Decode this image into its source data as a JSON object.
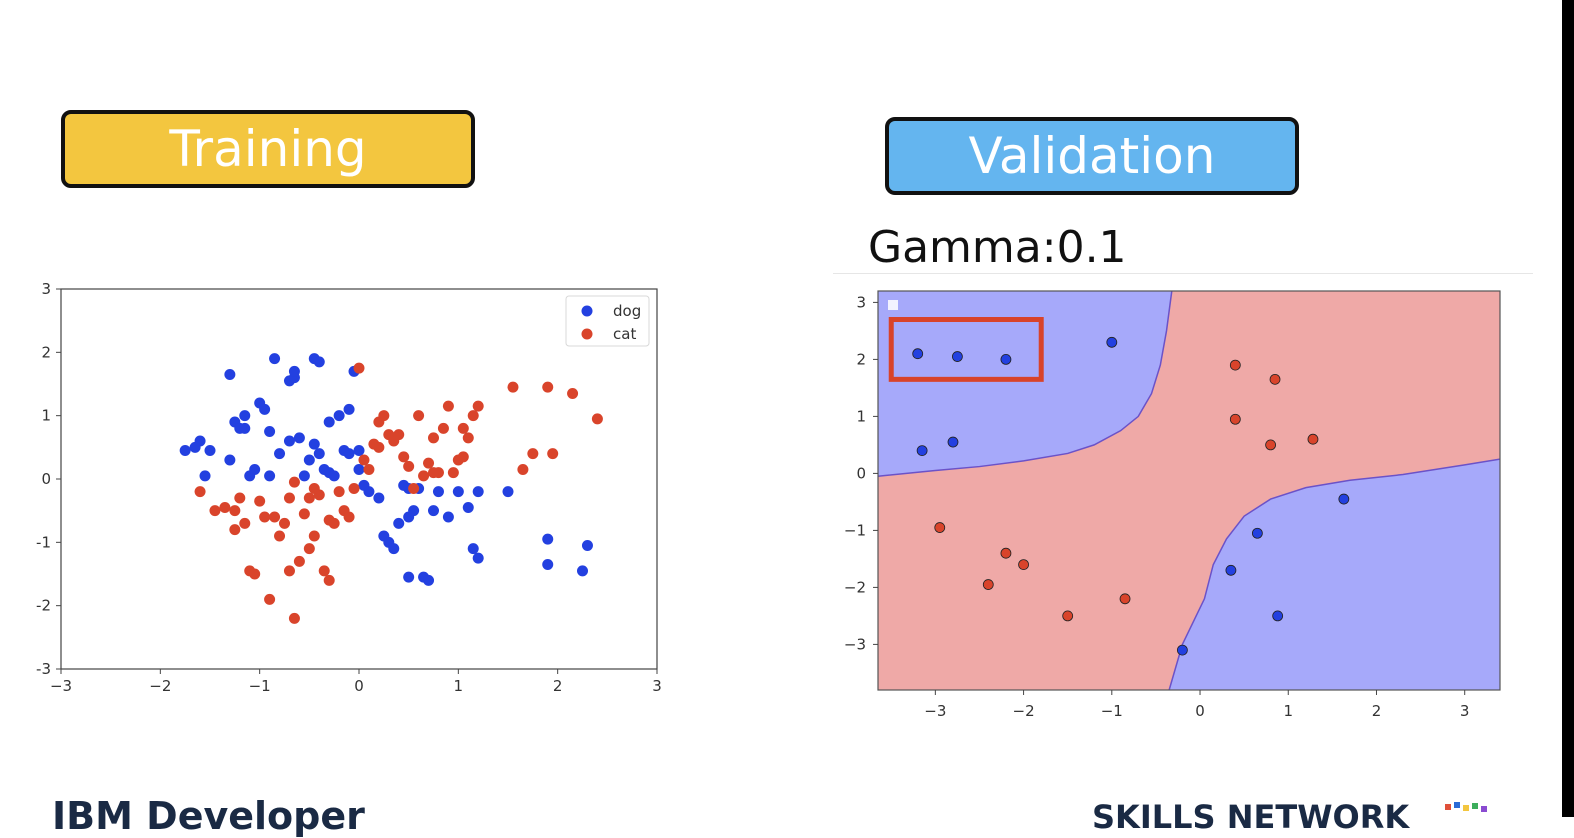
{
  "slide": {
    "training_label": "Training",
    "validation_label": "Validation",
    "gamma_label": "Gamma:0.1",
    "footer_left": "IBM Developer",
    "footer_right": "SKILLS NETWORK"
  },
  "colors": {
    "training_pill": "#f3c63f",
    "validation_pill": "#64b5ef",
    "dog": "#2340e0",
    "cat": "#d9442b",
    "region_dog": "#a6a9fa",
    "region_cat": "#efa9a7",
    "highlight_box": "#d8432a"
  },
  "chart_data": [
    {
      "type": "scatter",
      "title": "",
      "xlim": [
        -3,
        3
      ],
      "ylim": [
        -3,
        3
      ],
      "xticks": [
        "−3",
        "−2",
        "−1",
        "0",
        "1",
        "2",
        "3"
      ],
      "yticks": [
        "3",
        "2",
        "1",
        "0",
        "-1",
        "-2",
        "-3"
      ],
      "legend": {
        "placement": "top-right",
        "entries": [
          "dog",
          "cat"
        ]
      },
      "series": [
        {
          "name": "dog",
          "points": [
            [
              -1.75,
              0.45
            ],
            [
              -1.65,
              0.5
            ],
            [
              -1.6,
              0.6
            ],
            [
              -1.55,
              0.05
            ],
            [
              -1.5,
              0.45
            ],
            [
              -1.3,
              1.65
            ],
            [
              -1.3,
              0.3
            ],
            [
              -1.25,
              0.9
            ],
            [
              -1.2,
              0.8
            ],
            [
              -1.15,
              1.0
            ],
            [
              -1.1,
              0.05
            ],
            [
              -1.05,
              0.15
            ],
            [
              -1.0,
              1.2
            ],
            [
              -0.95,
              1.1
            ],
            [
              -0.9,
              0.05
            ],
            [
              -0.9,
              0.75
            ],
            [
              -0.85,
              1.9
            ],
            [
              -0.8,
              0.4
            ],
            [
              -0.7,
              0.6
            ],
            [
              -0.7,
              1.55
            ],
            [
              -0.65,
              1.6
            ],
            [
              -0.65,
              1.7
            ],
            [
              -0.6,
              0.65
            ],
            [
              -0.55,
              0.05
            ],
            [
              -0.5,
              0.3
            ],
            [
              -0.45,
              1.9
            ],
            [
              -0.45,
              0.55
            ],
            [
              -0.4,
              1.85
            ],
            [
              -0.4,
              0.4
            ],
            [
              -0.35,
              0.15
            ],
            [
              -0.3,
              0.1
            ],
            [
              -0.25,
              0.05
            ],
            [
              -0.2,
              1.0
            ],
            [
              -0.15,
              0.45
            ],
            [
              -0.1,
              1.1
            ],
            [
              -0.1,
              0.4
            ],
            [
              -0.05,
              1.7
            ],
            [
              0.0,
              0.15
            ],
            [
              0.05,
              -0.1
            ],
            [
              0.1,
              -0.2
            ],
            [
              0.2,
              -0.3
            ],
            [
              0.25,
              -0.9
            ],
            [
              0.3,
              -1.0
            ],
            [
              0.35,
              -1.1
            ],
            [
              0.4,
              -0.7
            ],
            [
              0.45,
              -0.1
            ],
            [
              0.5,
              -0.15
            ],
            [
              0.5,
              -0.6
            ],
            [
              0.55,
              -0.5
            ],
            [
              0.6,
              -0.15
            ],
            [
              0.65,
              -1.55
            ],
            [
              0.7,
              -1.6
            ],
            [
              0.75,
              -0.5
            ],
            [
              0.8,
              -0.2
            ],
            [
              0.9,
              -0.6
            ],
            [
              1.0,
              -0.2
            ],
            [
              1.1,
              -0.45
            ],
            [
              1.15,
              -1.1
            ],
            [
              1.2,
              -1.25
            ],
            [
              1.2,
              -0.2
            ],
            [
              1.5,
              -0.2
            ],
            [
              1.9,
              -0.95
            ],
            [
              1.9,
              -1.35
            ],
            [
              2.3,
              -1.05
            ],
            [
              2.25,
              -1.45
            ],
            [
              0.5,
              -1.55
            ],
            [
              0.0,
              0.45
            ],
            [
              -1.15,
              0.8
            ],
            [
              -0.3,
              0.9
            ]
          ]
        },
        {
          "name": "cat",
          "points": [
            [
              -1.6,
              -0.2
            ],
            [
              -1.45,
              -0.5
            ],
            [
              -1.35,
              -0.45
            ],
            [
              -1.25,
              -0.5
            ],
            [
              -1.2,
              -0.3
            ],
            [
              -1.15,
              -0.7
            ],
            [
              -1.1,
              -1.45
            ],
            [
              -1.05,
              -1.5
            ],
            [
              -1.0,
              -0.35
            ],
            [
              -0.95,
              -0.6
            ],
            [
              -0.9,
              -1.9
            ],
            [
              -0.85,
              -0.6
            ],
            [
              -0.8,
              -0.9
            ],
            [
              -0.75,
              -0.7
            ],
            [
              -0.7,
              -1.45
            ],
            [
              -0.7,
              -0.3
            ],
            [
              -0.65,
              -0.05
            ],
            [
              -0.65,
              -2.2
            ],
            [
              -0.6,
              -1.3
            ],
            [
              -0.55,
              -0.55
            ],
            [
              -0.5,
              -0.3
            ],
            [
              -0.5,
              -1.1
            ],
            [
              -0.45,
              -0.9
            ],
            [
              -0.4,
              -0.25
            ],
            [
              -0.35,
              -1.45
            ],
            [
              -0.3,
              -1.6
            ],
            [
              -0.3,
              -0.65
            ],
            [
              -0.25,
              -0.7
            ],
            [
              -0.2,
              -0.2
            ],
            [
              -0.15,
              -0.5
            ],
            [
              -0.1,
              -0.6
            ],
            [
              -0.05,
              -0.15
            ],
            [
              0.0,
              1.75
            ],
            [
              0.05,
              0.3
            ],
            [
              0.1,
              0.15
            ],
            [
              0.15,
              0.55
            ],
            [
              0.2,
              0.5
            ],
            [
              0.2,
              0.9
            ],
            [
              0.25,
              1.0
            ],
            [
              0.3,
              0.7
            ],
            [
              0.35,
              0.6
            ],
            [
              0.4,
              0.7
            ],
            [
              0.45,
              0.35
            ],
            [
              0.5,
              0.2
            ],
            [
              0.55,
              -0.15
            ],
            [
              0.6,
              1.0
            ],
            [
              0.65,
              0.05
            ],
            [
              0.7,
              0.25
            ],
            [
              0.75,
              0.65
            ],
            [
              0.8,
              0.1
            ],
            [
              0.85,
              0.8
            ],
            [
              0.9,
              1.15
            ],
            [
              0.95,
              0.1
            ],
            [
              1.0,
              0.3
            ],
            [
              1.05,
              0.35
            ],
            [
              1.1,
              0.65
            ],
            [
              1.2,
              1.15
            ],
            [
              1.55,
              1.45
            ],
            [
              1.65,
              0.15
            ],
            [
              1.75,
              0.4
            ],
            [
              1.95,
              0.4
            ],
            [
              1.9,
              1.45
            ],
            [
              2.15,
              1.35
            ],
            [
              2.4,
              0.95
            ],
            [
              -1.25,
              -0.8
            ],
            [
              -0.45,
              -0.15
            ],
            [
              1.15,
              1.0
            ],
            [
              0.75,
              0.1
            ],
            [
              1.05,
              0.8
            ]
          ]
        }
      ]
    },
    {
      "type": "scatter",
      "title": "Gamma:0.1",
      "xlim": [
        -3.65,
        3.4
      ],
      "ylim": [
        -3.8,
        3.2
      ],
      "xticks": [
        "−3",
        "−2",
        "−1",
        "0",
        "1",
        "2",
        "3"
      ],
      "yticks": [
        "3",
        "2",
        "1",
        "0",
        "−1",
        "−2",
        "−3"
      ],
      "decision_regions": true,
      "highlight_region": {
        "x": [
          -3.5,
          -1.8
        ],
        "y": [
          1.65,
          2.7
        ]
      },
      "series": [
        {
          "name": "dog",
          "points": [
            [
              -3.2,
              2.1
            ],
            [
              -2.75,
              2.05
            ],
            [
              -2.2,
              2.0
            ],
            [
              -1.0,
              2.3
            ],
            [
              -3.15,
              0.4
            ],
            [
              -2.8,
              0.55
            ],
            [
              1.63,
              -0.45
            ],
            [
              0.65,
              -1.05
            ],
            [
              0.35,
              -1.7
            ],
            [
              0.88,
              -2.5
            ],
            [
              -0.2,
              -3.1
            ]
          ]
        },
        {
          "name": "cat",
          "points": [
            [
              0.4,
              1.9
            ],
            [
              0.85,
              1.65
            ],
            [
              0.4,
              0.95
            ],
            [
              1.28,
              0.6
            ],
            [
              0.8,
              0.5
            ],
            [
              -2.95,
              -0.95
            ],
            [
              -2.2,
              -1.4
            ],
            [
              -2.0,
              -1.6
            ],
            [
              -2.4,
              -1.95
            ],
            [
              -1.5,
              -2.5
            ],
            [
              -0.85,
              -2.2
            ]
          ]
        }
      ]
    }
  ]
}
